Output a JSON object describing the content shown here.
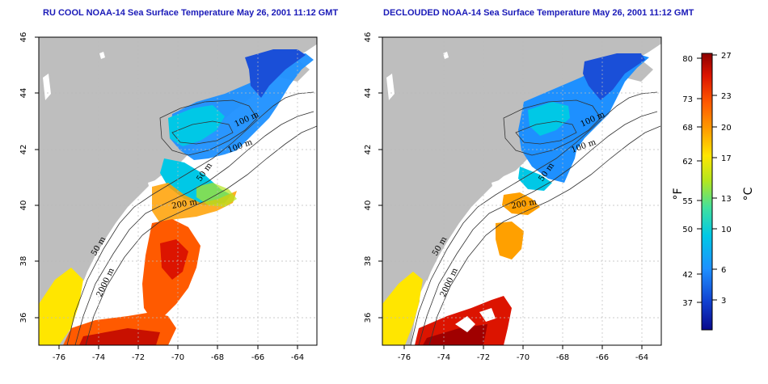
{
  "panels": [
    {
      "title": "RU COOL NOAA-14 Sea Surface Temperature May 26, 2001 11:12 GMT",
      "xticks": [
        "-76",
        "-74",
        "-72",
        "-70",
        "-68",
        "-66",
        "-64"
      ],
      "yticks": [
        "36",
        "38",
        "40",
        "42",
        "44",
        "46"
      ],
      "contour_labels": [
        "100 m",
        "100 m",
        "50 m",
        "200 m",
        "50 m",
        "2000 m"
      ]
    },
    {
      "title": "DECLOUDED NOAA-14 Sea Surface Temperature May 26, 2001 11:12 GMT",
      "xticks": [
        "-76",
        "-74",
        "-72",
        "-70",
        "-68",
        "-66",
        "-64"
      ],
      "yticks": [
        "36",
        "38",
        "40",
        "42",
        "44",
        "46"
      ],
      "contour_labels": [
        "100 m",
        "100 m",
        "50 m",
        "200 m",
        "50 m",
        "2000 m"
      ]
    }
  ],
  "map_extent": {
    "lon": [
      -77,
      -63
    ],
    "lat": [
      35,
      46
    ]
  },
  "colorbar": {
    "fahrenheit_label": "°F",
    "celsius_label": "°C",
    "fahrenheit_ticks": [
      "80",
      "73",
      "68",
      "62",
      "55",
      "50",
      "42",
      "37"
    ],
    "celsius_ticks": [
      "27",
      "23",
      "20",
      "17",
      "13",
      "10",
      "6",
      "3"
    ],
    "range_c": [
      0,
      27
    ],
    "colors": [
      "#0a0a8c",
      "#1040d0",
      "#1e90ff",
      "#00c8e6",
      "#40e0a0",
      "#b4e61e",
      "#ffe600",
      "#ffa000",
      "#ff5a00",
      "#dc1400",
      "#8c0000"
    ]
  }
}
